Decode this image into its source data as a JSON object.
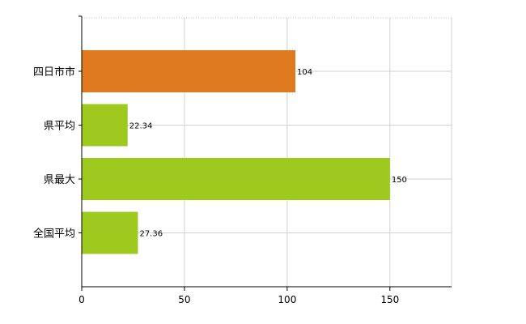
{
  "chart_data": {
    "type": "bar",
    "orientation": "horizontal",
    "categories": [
      "四日市市",
      "県平均",
      "県最大",
      "全国平均"
    ],
    "values": [
      104,
      22.34,
      150,
      27.36
    ],
    "data_labels": [
      "104",
      "22.34",
      "150",
      "27.36"
    ],
    "colors": [
      "#e07a1f",
      "#9ec91f",
      "#9ec91f",
      "#9ec91f"
    ],
    "xlim": [
      0,
      180
    ],
    "xticks": [
      0,
      50,
      100,
      150
    ],
    "xtick_labels": [
      "0",
      "50",
      "100",
      "150"
    ],
    "grid": true,
    "legend": "none"
  }
}
